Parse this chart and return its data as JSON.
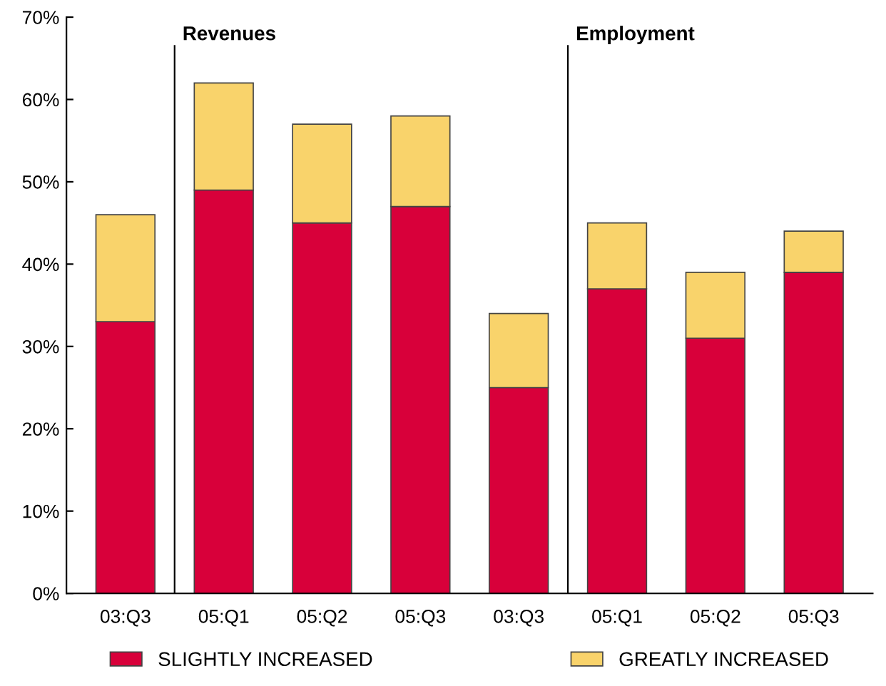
{
  "chart_data": {
    "type": "bar",
    "stacked": true,
    "categories": [
      "03:Q3",
      "05:Q1",
      "05:Q2",
      "05:Q3",
      "03:Q3",
      "05:Q1",
      "05:Q2",
      "05:Q3"
    ],
    "series": [
      {
        "name": "SLIGHTLY INCREASED",
        "color": "#d8003a",
        "values": [
          33,
          49,
          45,
          47,
          25,
          37,
          31,
          39
        ]
      },
      {
        "name": "GREATLY INCREASED",
        "color": "#f9d36b",
        "values": [
          13,
          13,
          12,
          11,
          9,
          8,
          8,
          5
        ]
      }
    ],
    "ylim": [
      0,
      70
    ],
    "yticks": [
      {
        "value": 0,
        "label": "0%"
      },
      {
        "value": 10,
        "label": "10%"
      },
      {
        "value": 20,
        "label": "20%"
      },
      {
        "value": 30,
        "label": "30%"
      },
      {
        "value": 40,
        "label": "40%"
      },
      {
        "value": 50,
        "label": "50%"
      },
      {
        "value": 60,
        "label": "60%"
      },
      {
        "value": 70,
        "label": "70%"
      }
    ],
    "annotations": [
      "Revenues",
      "Employment"
    ],
    "grid": false,
    "legend": "bottom"
  }
}
